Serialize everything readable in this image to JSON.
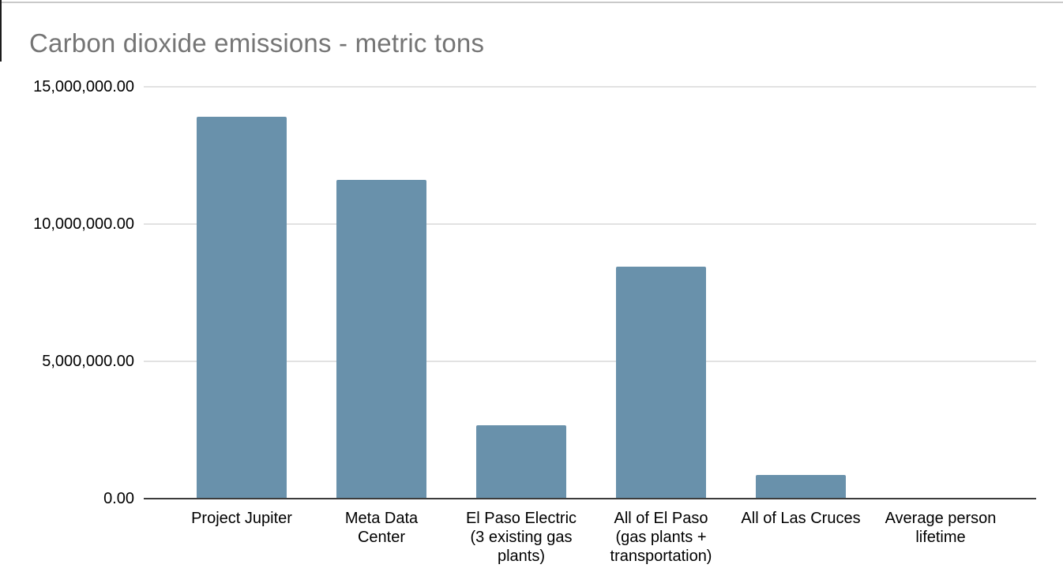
{
  "page": {
    "top_border_color": "#c9c9c9",
    "left_edge_color": "#1c1c1c",
    "background_color": "#ffffff"
  },
  "chart_data": {
    "type": "bar",
    "title": "Carbon dioxide emissions - metric tons",
    "categories": [
      "Project Jupiter",
      "Meta Data\nCenter",
      "El Paso Electric\n(3 existing gas\nplants)",
      "All of El Paso\n(gas plants +\ntransportation)",
      "All of Las Cruces",
      "Average person\nlifetime"
    ],
    "values": [
      13900000,
      11600000,
      2670000,
      8450000,
      870000,
      0
    ],
    "y_ticks": [
      "15,000,000.00",
      "10,000,000.00",
      "5,000,000.00",
      "0.00"
    ],
    "ylim": [
      0,
      15000000
    ],
    "xlabel": "",
    "ylabel": "",
    "legend_position": "none",
    "grid": "horizontal",
    "bar_color": "#6991ab",
    "title_color": "#757575",
    "axis_label_color": "#000000",
    "gridline_color": "#e2e2e2",
    "axis_line_color": "#3c3c3c"
  }
}
